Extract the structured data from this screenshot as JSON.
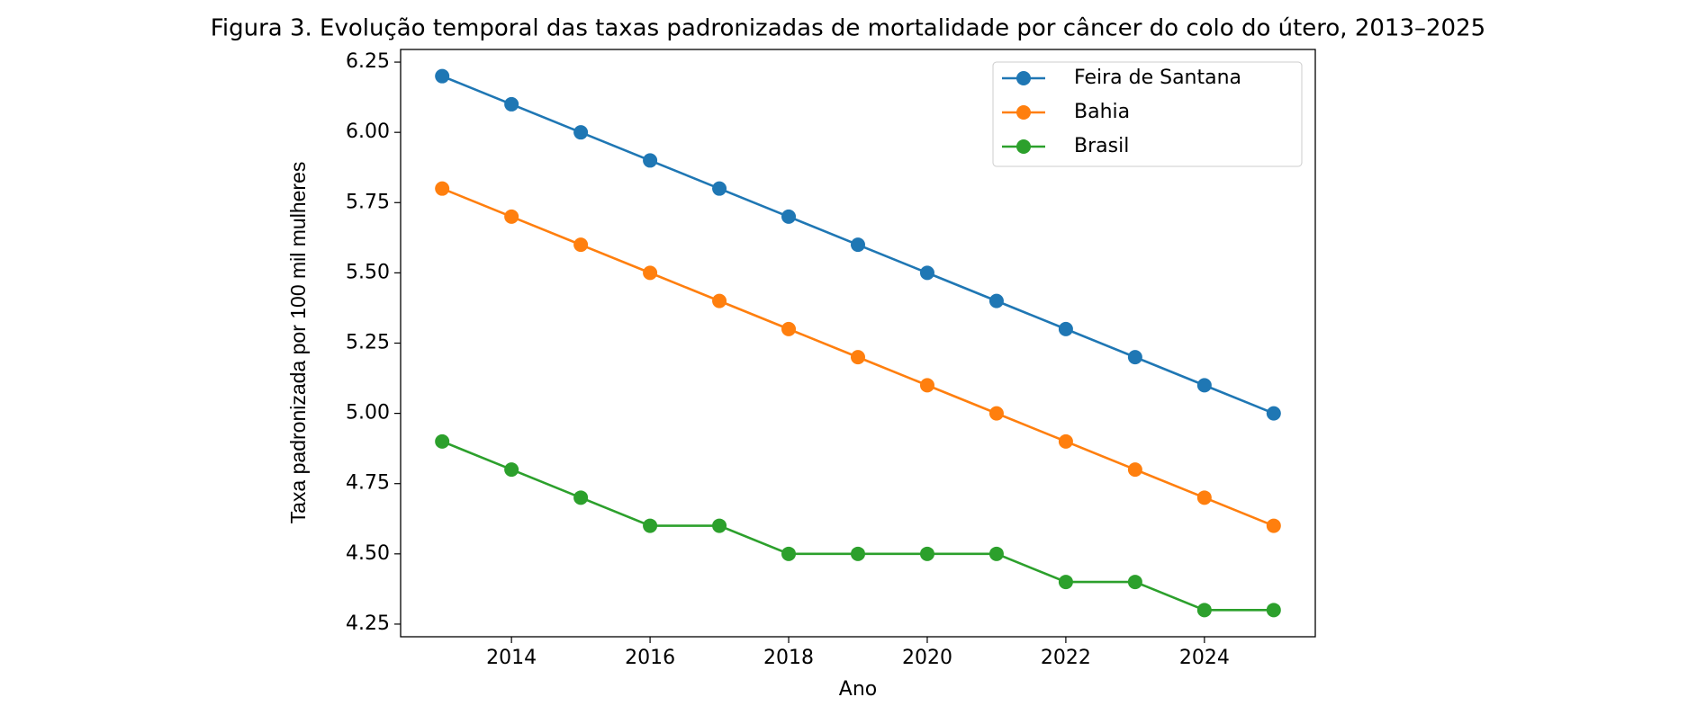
{
  "chart_data": {
    "type": "line",
    "title": "Figura 3. Evolução temporal das taxas padronizadas de mortalidade por câncer do colo do útero, 2013–2025",
    "x_label": "Ano",
    "y_label": "Taxa padronizada por 100 mil mulheres",
    "x": [
      2013,
      2014,
      2015,
      2016,
      2017,
      2018,
      2019,
      2020,
      2021,
      2022,
      2023,
      2024,
      2025
    ],
    "series": [
      {
        "name": "Feira de Santana",
        "color": "#1f77b4",
        "values": [
          6.2,
          6.1,
          6.0,
          5.9,
          5.8,
          5.7,
          5.6,
          5.5,
          5.4,
          5.3,
          5.2,
          5.1,
          5.0
        ]
      },
      {
        "name": "Bahia",
        "color": "#ff7f0e",
        "values": [
          5.8,
          5.7,
          5.6,
          5.5,
          5.4,
          5.3,
          5.2,
          5.1,
          5.0,
          4.9,
          4.8,
          4.7,
          4.6
        ]
      },
      {
        "name": "Brasil",
        "color": "#2ca02c",
        "values": [
          4.9,
          4.8,
          4.7,
          4.6,
          4.6,
          4.5,
          4.5,
          4.5,
          4.5,
          4.4,
          4.4,
          4.3,
          4.3
        ]
      }
    ],
    "xlim": [
      2012.4,
      2025.6
    ],
    "xticks": [
      2014,
      2016,
      2018,
      2020,
      2022,
      2024
    ],
    "ylim": [
      4.205,
      6.295
    ],
    "yticks": [
      4.25,
      {
        "value": 4.5,
        "label": "4.50"
      },
      4.75,
      {
        "value": 5.0,
        "label": "5.00"
      },
      5.25,
      {
        "value": 5.5,
        "label": "5.50"
      },
      5.75,
      {
        "value": 6.0,
        "label": "6.00"
      },
      6.25
    ],
    "legend": "upper right",
    "grid": false
  }
}
